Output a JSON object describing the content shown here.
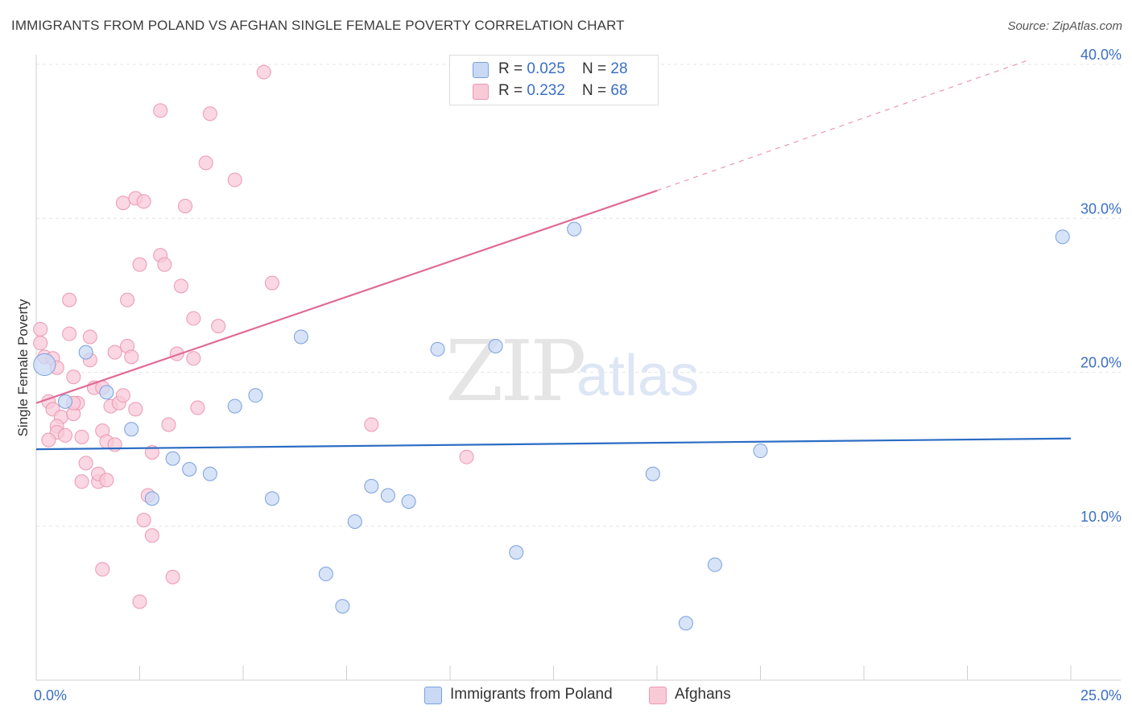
{
  "title": "IMMIGRANTS FROM POLAND VS AFGHAN SINGLE FEMALE POVERTY CORRELATION CHART",
  "source": "Source: ZipAtlas.com",
  "watermark": {
    "zip": "ZIP",
    "atlas": "atlas"
  },
  "legend": {
    "poland": {
      "r_label": "R = ",
      "r_value": "0.025",
      "n_label": "N = ",
      "n_value": "28"
    },
    "afghan": {
      "r_label": "R = ",
      "r_value": "0.232",
      "n_label": "N = ",
      "n_value": "68"
    }
  },
  "bottom_legend": {
    "poland": "Immigrants from Poland",
    "afghan": "Afghans"
  },
  "colors": {
    "poland_fill": "#c9d9f4",
    "poland_stroke": "#7aa0de",
    "poland_line": "#2b6cc4",
    "afghan_fill": "#f8cad8",
    "afghan_stroke": "#eb98b3",
    "afghan_line": "#e06b95",
    "grid": "#e4e4e4",
    "axis_label": "#3a6fc4"
  },
  "chart_data": {
    "type": "scatter",
    "title": "IMMIGRANTS FROM POLAND VS AFGHAN SINGLE FEMALE POVERTY CORRELATION CHART",
    "xlabel": "",
    "ylabel": "Single Female Poverty",
    "xlim": [
      0,
      25
    ],
    "ylim": [
      0,
      40
    ],
    "x_tick_labels": [
      "0.0%",
      "25.0%"
    ],
    "y_ticks": [
      10,
      20,
      30,
      40
    ],
    "y_tick_labels": [
      "10.0%",
      "20.0%",
      "30.0%",
      "40.0%"
    ],
    "grid": true,
    "legend_position": "top-center",
    "series": [
      {
        "name": "Immigrants from Poland",
        "r": 0.025,
        "n": 28,
        "trend": {
          "x0": 0,
          "y0": 15.0,
          "x1": 25,
          "y1": 15.7,
          "dashed_extension": false
        },
        "points": [
          [
            0.2,
            20.5,
            1.6
          ],
          [
            1.2,
            21.3,
            1
          ],
          [
            0.7,
            18.1,
            1
          ],
          [
            1.7,
            18.7,
            1
          ],
          [
            2.3,
            16.3,
            1
          ],
          [
            3.3,
            14.4,
            1
          ],
          [
            3.7,
            13.7,
            1
          ],
          [
            2.8,
            11.8,
            1
          ],
          [
            4.2,
            13.4,
            1
          ],
          [
            4.8,
            17.8,
            1
          ],
          [
            5.3,
            18.5,
            1
          ],
          [
            5.7,
            11.8,
            1
          ],
          [
            6.4,
            22.3,
            1
          ],
          [
            7.7,
            10.3,
            1
          ],
          [
            8.1,
            12.6,
            1
          ],
          [
            8.5,
            12.0,
            1
          ],
          [
            9.0,
            11.6,
            1
          ],
          [
            9.7,
            21.5,
            1
          ],
          [
            11.1,
            21.7,
            1
          ],
          [
            13.0,
            29.3,
            1
          ],
          [
            7.0,
            6.9,
            1
          ],
          [
            7.4,
            4.8,
            1
          ],
          [
            11.6,
            8.3,
            1
          ],
          [
            14.9,
            13.4,
            1
          ],
          [
            15.7,
            3.7,
            1
          ],
          [
            16.4,
            7.5,
            1
          ],
          [
            17.5,
            14.9,
            1
          ],
          [
            24.8,
            28.8,
            1
          ]
        ]
      },
      {
        "name": "Afghans",
        "r": 0.232,
        "n": 68,
        "trend": {
          "x0": 0,
          "y0": 18.0,
          "x1": 15.0,
          "y1": 31.8,
          "dashed_to_x": 24.0,
          "dashed_to_y": 40.3
        },
        "points": [
          [
            0.1,
            22.8,
            1
          ],
          [
            0.1,
            21.9,
            1
          ],
          [
            0.2,
            21.0,
            1
          ],
          [
            0.4,
            20.9,
            1
          ],
          [
            0.5,
            20.3,
            1
          ],
          [
            0.3,
            18.1,
            1
          ],
          [
            0.4,
            17.6,
            1
          ],
          [
            0.6,
            17.1,
            1
          ],
          [
            0.5,
            16.5,
            1
          ],
          [
            0.5,
            16.1,
            1
          ],
          [
            0.3,
            15.6,
            1
          ],
          [
            0.7,
            15.9,
            1
          ],
          [
            0.8,
            24.7,
            1
          ],
          [
            0.8,
            22.5,
            1
          ],
          [
            0.9,
            19.7,
            1
          ],
          [
            0.9,
            17.3,
            1
          ],
          [
            1.0,
            18.0,
            1
          ],
          [
            1.1,
            15.8,
            1
          ],
          [
            1.2,
            14.1,
            1
          ],
          [
            1.1,
            12.9,
            1
          ],
          [
            1.3,
            22.3,
            1
          ],
          [
            1.3,
            20.8,
            1
          ],
          [
            1.4,
            19.0,
            1
          ],
          [
            1.5,
            12.9,
            1
          ],
          [
            1.5,
            13.4,
            1
          ],
          [
            1.6,
            19.0,
            1
          ],
          [
            1.6,
            16.2,
            1
          ],
          [
            1.7,
            15.5,
            1
          ],
          [
            1.7,
            13.0,
            1
          ],
          [
            1.8,
            17.8,
            1
          ],
          [
            1.9,
            15.3,
            1
          ],
          [
            1.9,
            21.3,
            1
          ],
          [
            2.0,
            18.0,
            1
          ],
          [
            2.1,
            18.5,
            1
          ],
          [
            2.2,
            24.7,
            1
          ],
          [
            2.2,
            21.7,
            1
          ],
          [
            2.3,
            21.0,
            1
          ],
          [
            2.4,
            17.6,
            1
          ],
          [
            2.1,
            31.0,
            1
          ],
          [
            2.4,
            31.3,
            1
          ],
          [
            2.6,
            31.1,
            1
          ],
          [
            2.5,
            27.0,
            1
          ],
          [
            2.7,
            12.0,
            1
          ],
          [
            2.8,
            14.8,
            1
          ],
          [
            2.8,
            9.4,
            1
          ],
          [
            3.0,
            27.6,
            1
          ],
          [
            3.0,
            37.0,
            1
          ],
          [
            3.1,
            27.0,
            1
          ],
          [
            3.2,
            16.6,
            1
          ],
          [
            3.3,
            6.7,
            1
          ],
          [
            3.4,
            21.2,
            1
          ],
          [
            3.5,
            25.6,
            1
          ],
          [
            3.6,
            30.8,
            1
          ],
          [
            3.8,
            20.9,
            1
          ],
          [
            3.8,
            23.5,
            1
          ],
          [
            3.9,
            17.7,
            1
          ],
          [
            4.1,
            33.6,
            1
          ],
          [
            4.2,
            36.8,
            1
          ],
          [
            4.4,
            23.0,
            1
          ],
          [
            4.8,
            32.5,
            1
          ],
          [
            2.6,
            10.4,
            1
          ],
          [
            2.5,
            5.1,
            1
          ],
          [
            1.6,
            7.2,
            1
          ],
          [
            5.5,
            39.5,
            1
          ],
          [
            5.7,
            25.8,
            1
          ],
          [
            8.1,
            16.6,
            1
          ],
          [
            10.4,
            14.5,
            1
          ],
          [
            0.9,
            18.0,
            1
          ]
        ]
      }
    ]
  }
}
